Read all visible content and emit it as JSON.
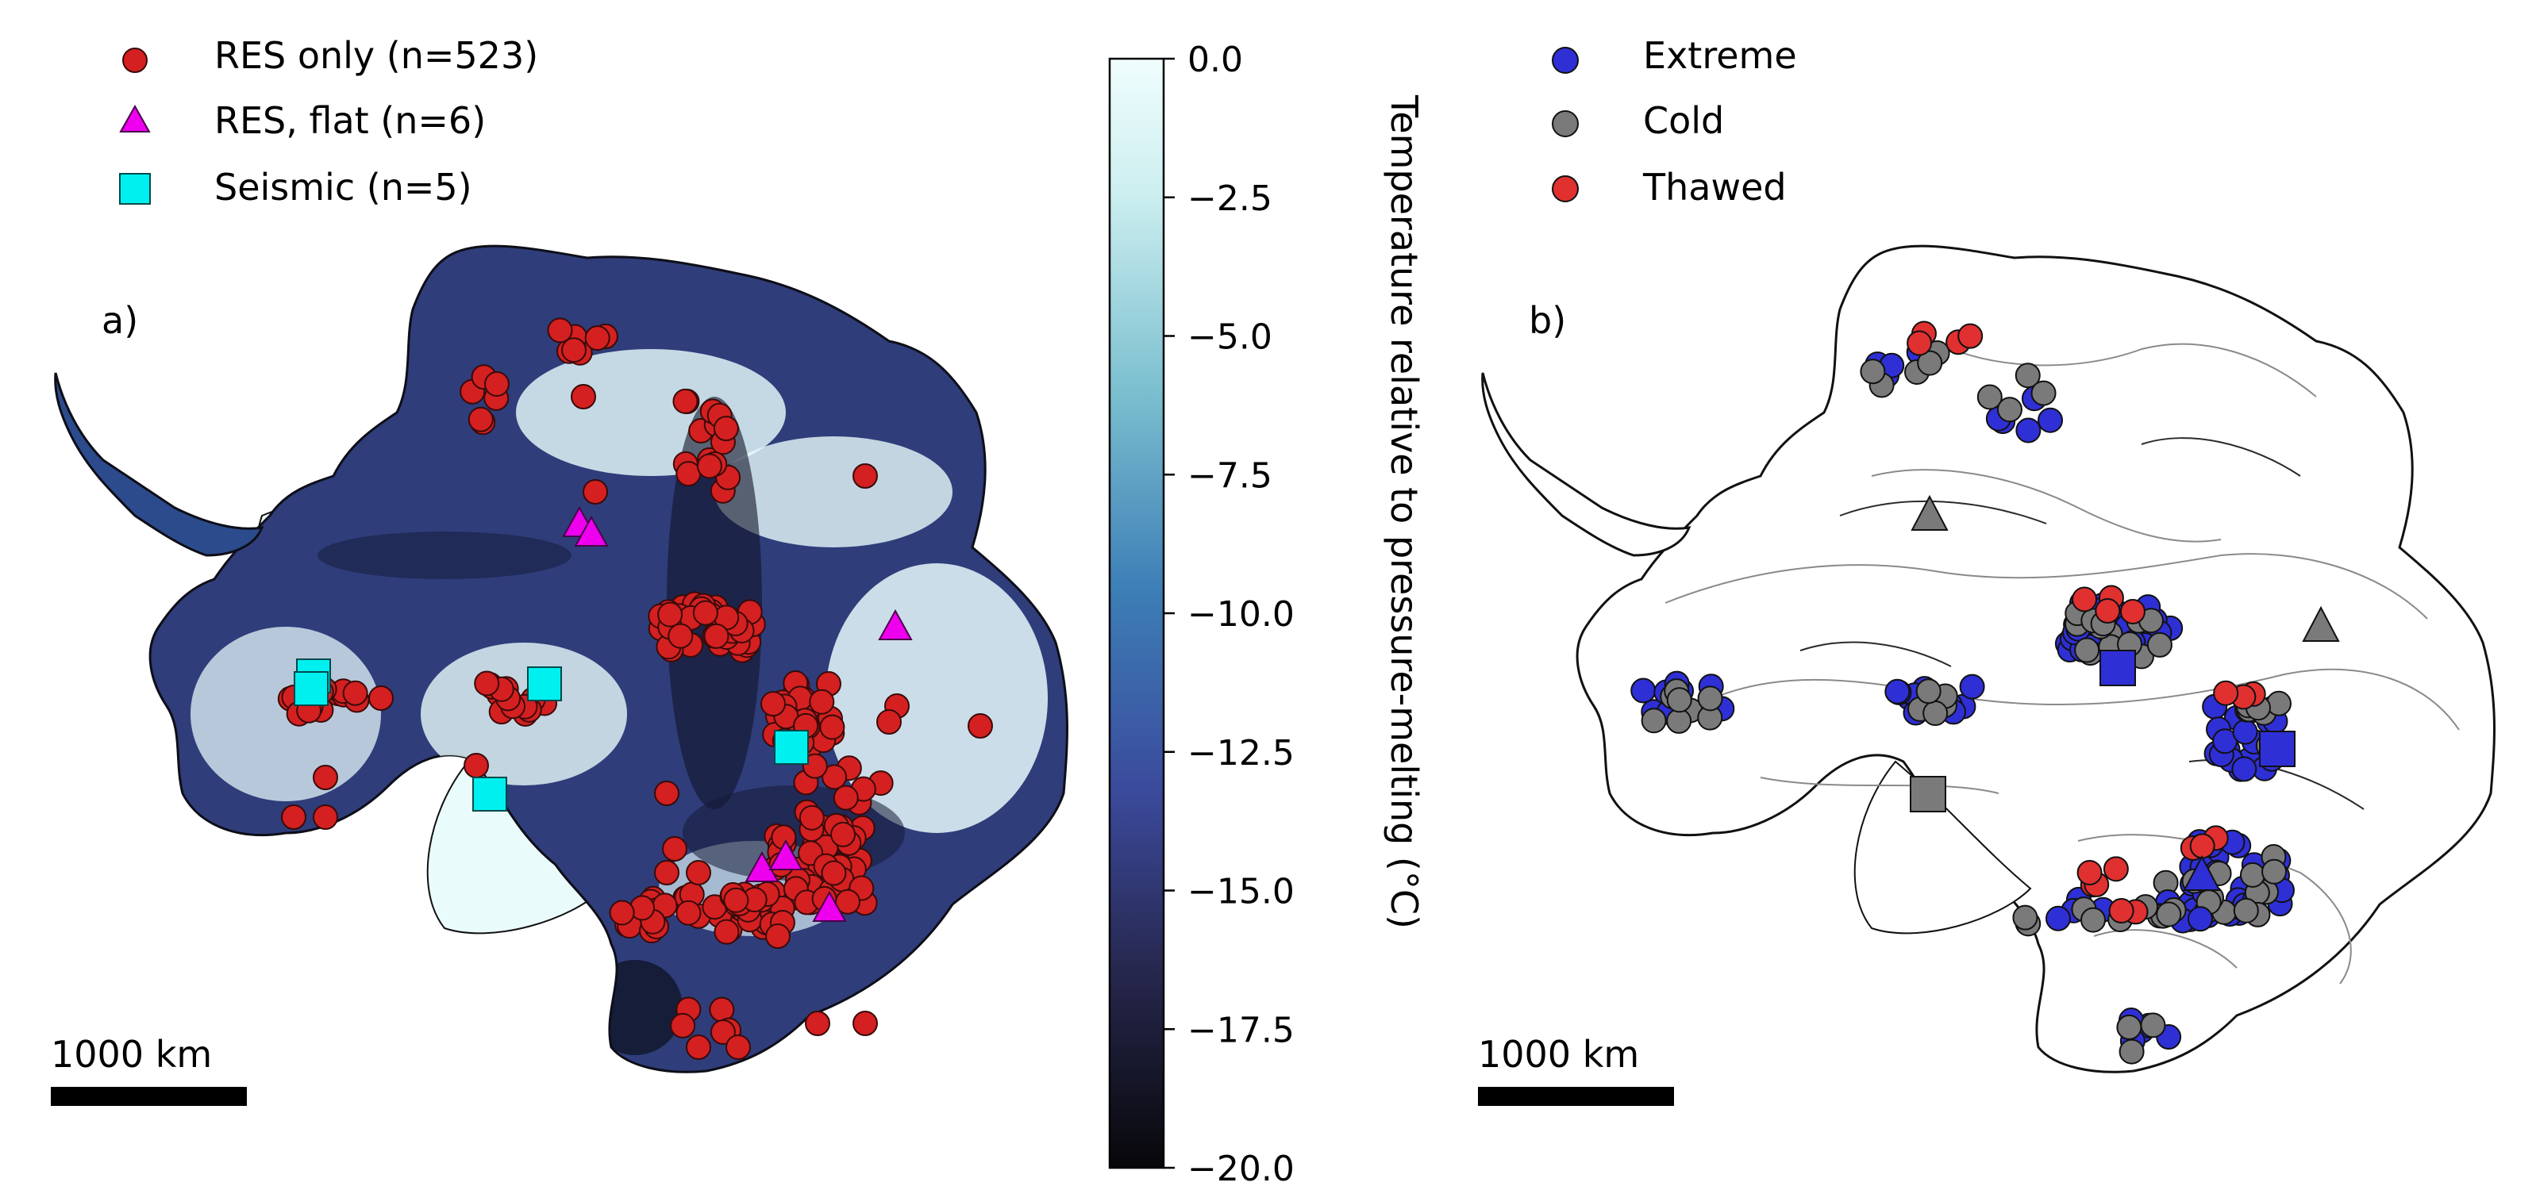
{
  "panel_a": {
    "label": "a)",
    "legend": {
      "res_only": "RES only (n=523)",
      "res_flat": "RES, flat (n=6)",
      "seismic": "Seismic (n=5)"
    },
    "scale_bar": "1000 km"
  },
  "panel_b": {
    "label": "b)",
    "legend": {
      "extreme": "Extreme",
      "cold": "Cold",
      "thawed": "Thawed"
    },
    "scale_bar": "1000 km"
  },
  "colorbar": {
    "label": "Temperature relative to pressure-melting (°C)",
    "range": [
      -20.0,
      0.0
    ],
    "ticks": [
      "0.0",
      "−2.5",
      "−5.0",
      "−7.5",
      "−10.0",
      "−12.5",
      "−15.0",
      "−17.5",
      "−20.0"
    ],
    "colormap": "ice (dark navy to pale cyan)"
  },
  "colors": {
    "res_only": "#d42020",
    "res_flat": "#ee00ee",
    "seismic": "#00f0f0",
    "extreme": "#2f2fd6",
    "cold": "#7a7a7a",
    "thawed": "#e03030",
    "ice_warm": "#e9fbfb",
    "ice_cold": "#0c0f1e"
  }
}
